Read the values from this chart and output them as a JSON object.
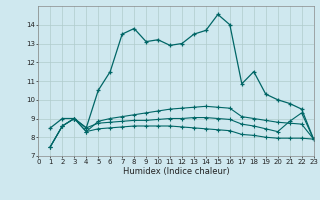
{
  "xlabel": "Humidex (Indice chaleur)",
  "bg_color": "#cfe8ef",
  "grid_color": "#b0cccc",
  "line_color": "#006666",
  "ylim": [
    7,
    15
  ],
  "xlim": [
    0,
    23
  ],
  "yticks": [
    7,
    8,
    9,
    10,
    11,
    12,
    13,
    14
  ],
  "xticks": [
    0,
    1,
    2,
    3,
    4,
    5,
    6,
    7,
    8,
    9,
    10,
    11,
    12,
    13,
    14,
    15,
    16,
    17,
    18,
    19,
    20,
    21,
    22,
    23
  ],
  "line1_x": [
    1,
    2,
    3,
    4,
    5,
    6,
    7,
    8,
    9,
    10,
    11,
    12,
    13,
    14,
    15,
    16,
    17,
    18,
    19,
    20,
    21,
    22,
    23
  ],
  "line1_y": [
    8.5,
    9.0,
    9.0,
    8.5,
    10.5,
    11.5,
    13.5,
    13.8,
    13.1,
    13.2,
    12.9,
    13.0,
    13.5,
    13.7,
    14.55,
    14.0,
    10.85,
    11.5,
    10.3,
    10.0,
    9.8,
    9.5,
    7.9
  ],
  "line2_x": [
    1,
    2,
    3,
    4,
    5,
    6,
    7,
    8,
    9,
    10,
    11,
    12,
    13,
    14,
    15,
    16,
    17,
    18,
    19,
    20,
    21,
    22,
    23
  ],
  "line2_y": [
    7.5,
    8.6,
    9.0,
    8.3,
    8.85,
    9.0,
    9.1,
    9.2,
    9.3,
    9.4,
    9.5,
    9.55,
    9.6,
    9.65,
    9.6,
    9.55,
    9.1,
    9.0,
    8.9,
    8.8,
    8.75,
    8.7,
    7.9
  ],
  "line3_x": [
    1,
    2,
    3,
    4,
    5,
    6,
    7,
    8,
    9,
    10,
    11,
    12,
    13,
    14,
    15,
    16,
    17,
    18,
    19,
    20,
    21,
    22,
    23
  ],
  "line3_y": [
    7.5,
    8.6,
    9.0,
    8.5,
    8.75,
    8.8,
    8.85,
    8.9,
    8.9,
    8.95,
    9.0,
    9.0,
    9.05,
    9.05,
    9.0,
    8.95,
    8.7,
    8.6,
    8.45,
    8.3,
    8.85,
    9.3,
    7.9
  ],
  "line4_x": [
    1,
    2,
    3,
    4,
    5,
    6,
    7,
    8,
    9,
    10,
    11,
    12,
    13,
    14,
    15,
    16,
    17,
    18,
    19,
    20,
    21,
    22,
    23
  ],
  "line4_y": [
    7.5,
    8.6,
    9.0,
    8.3,
    8.45,
    8.5,
    8.55,
    8.6,
    8.6,
    8.6,
    8.6,
    8.55,
    8.5,
    8.45,
    8.4,
    8.35,
    8.15,
    8.1,
    8.0,
    7.95,
    7.95,
    7.95,
    7.9
  ]
}
